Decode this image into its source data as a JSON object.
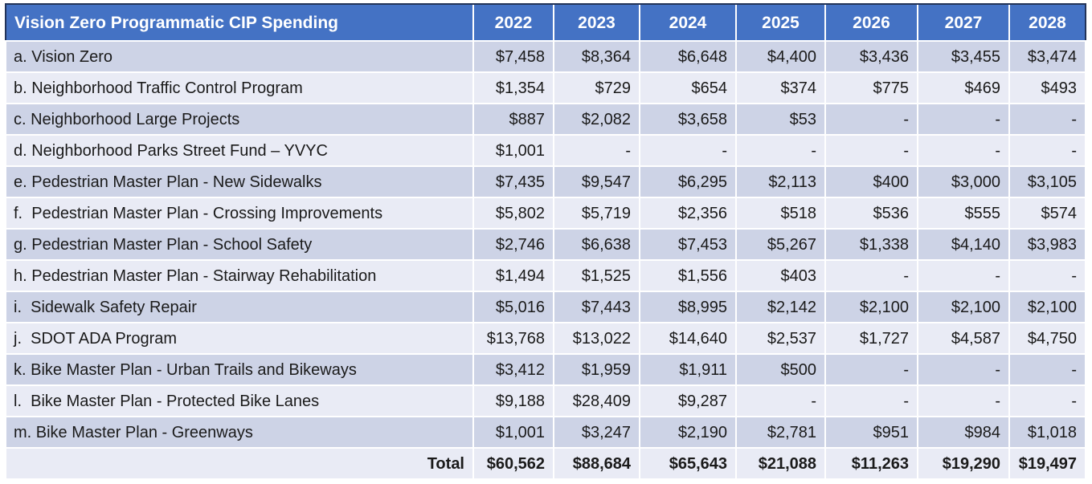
{
  "colors": {
    "header_bg": "#4472C4",
    "header_text": "#FFFFFF",
    "header_border": "#223358",
    "band_dark": "#CDD3E6",
    "band_light": "#E9EBF5",
    "text": "#1A1A1A"
  },
  "table": {
    "title": "Vision Zero Programmatic CIP Spending",
    "years": [
      "2022",
      "2023",
      "2024",
      "2025",
      "2026",
      "2027",
      "2028"
    ],
    "rows": [
      {
        "label": "a. Vision Zero",
        "display": [
          "$7,458",
          "$8,364",
          "$6,648",
          "$4,400",
          "$3,436",
          "$3,455",
          "$3,474"
        ]
      },
      {
        "label": "b. Neighborhood Traffic Control Program",
        "display": [
          "$1,354",
          "$729",
          "$654",
          "$374",
          "$775",
          "$469",
          "$493"
        ]
      },
      {
        "label": "c. Neighborhood Large Projects",
        "display": [
          "$887",
          "$2,082",
          "$3,658",
          "$53",
          "-",
          "-",
          "-"
        ]
      },
      {
        "label": "d. Neighborhood Parks Street Fund – YVYC",
        "display": [
          "$1,001",
          "-",
          "-",
          "-",
          "-",
          "-",
          "-"
        ]
      },
      {
        "label": "e. Pedestrian Master Plan - New Sidewalks",
        "display": [
          "$7,435",
          "$9,547",
          "$6,295",
          "$2,113",
          "$400",
          "$3,000",
          "$3,105"
        ]
      },
      {
        "label": "f.  Pedestrian Master Plan - Crossing Improvements",
        "display": [
          "$5,802",
          "$5,719",
          "$2,356",
          "$518",
          "$536",
          "$555",
          "$574"
        ]
      },
      {
        "label": "g. Pedestrian Master Plan - School Safety",
        "display": [
          "$2,746",
          "$6,638",
          "$7,453",
          "$5,267",
          "$1,338",
          "$4,140",
          "$3,983"
        ]
      },
      {
        "label": "h. Pedestrian Master Plan - Stairway Rehabilitation",
        "display": [
          "$1,494",
          "$1,525",
          "$1,556",
          "$403",
          "-",
          "-",
          "-"
        ]
      },
      {
        "label": "i.  Sidewalk Safety Repair",
        "display": [
          "$5,016",
          "$7,443",
          "$8,995",
          "$2,142",
          "$2,100",
          "$2,100",
          "$2,100"
        ]
      },
      {
        "label": "j.  SDOT ADA Program",
        "display": [
          "$13,768",
          "$13,022",
          "$14,640",
          "$2,537",
          "$1,727",
          "$4,587",
          "$4,750"
        ]
      },
      {
        "label": "k. Bike Master Plan - Urban Trails and Bikeways",
        "display": [
          "$3,412",
          "$1,959",
          "$1,911",
          "$500",
          "-",
          "-",
          "-"
        ]
      },
      {
        "label": "l.  Bike Master Plan - Protected Bike Lanes",
        "display": [
          "$9,188",
          "$28,409",
          "$9,287",
          "-",
          "-",
          "-",
          "-"
        ]
      },
      {
        "label": "m. Bike Master Plan - Greenways",
        "display": [
          "$1,001",
          "$3,247",
          "$2,190",
          "$2,781",
          "$951",
          "$984",
          "$1,018"
        ]
      }
    ],
    "total": {
      "label": "Total",
      "display": [
        "$60,562",
        "$88,684",
        "$65,643",
        "$21,088",
        "$11,263",
        "$19,290",
        "$19,497"
      ]
    }
  },
  "chart_data": {
    "type": "table",
    "title": "Vision Zero Programmatic CIP Spending",
    "columns": [
      "2022",
      "2023",
      "2024",
      "2025",
      "2026",
      "2027",
      "2028"
    ],
    "row_labels": [
      "a. Vision Zero",
      "b. Neighborhood Traffic Control Program",
      "c. Neighborhood Large Projects",
      "d. Neighborhood Parks Street Fund – YVYC",
      "e. Pedestrian Master Plan - New Sidewalks",
      "f. Pedestrian Master Plan - Crossing Improvements",
      "g. Pedestrian Master Plan - School Safety",
      "h. Pedestrian Master Plan - Stairway Rehabilitation",
      "i. Sidewalk Safety Repair",
      "j. SDOT ADA Program",
      "k. Bike Master Plan - Urban Trails and Bikeways",
      "l. Bike Master Plan - Protected Bike Lanes",
      "m. Bike Master Plan - Greenways"
    ],
    "values": [
      [
        7458,
        8364,
        6648,
        4400,
        3436,
        3455,
        3474
      ],
      [
        1354,
        729,
        654,
        374,
        775,
        469,
        493
      ],
      [
        887,
        2082,
        3658,
        53,
        null,
        null,
        null
      ],
      [
        1001,
        null,
        null,
        null,
        null,
        null,
        null
      ],
      [
        7435,
        9547,
        6295,
        2113,
        400,
        3000,
        3105
      ],
      [
        5802,
        5719,
        2356,
        518,
        536,
        555,
        574
      ],
      [
        2746,
        6638,
        7453,
        5267,
        1338,
        4140,
        3983
      ],
      [
        1494,
        1525,
        1556,
        403,
        null,
        null,
        null
      ],
      [
        5016,
        7443,
        8995,
        2142,
        2100,
        2100,
        2100
      ],
      [
        13768,
        13022,
        14640,
        2537,
        1727,
        4587,
        4750
      ],
      [
        3412,
        1959,
        1911,
        500,
        null,
        null,
        null
      ],
      [
        9188,
        28409,
        9287,
        null,
        null,
        null,
        null
      ],
      [
        1001,
        3247,
        2190,
        2781,
        951,
        984,
        1018
      ]
    ],
    "totals": [
      60562,
      88684,
      65643,
      21088,
      11263,
      19290,
      19497
    ]
  }
}
